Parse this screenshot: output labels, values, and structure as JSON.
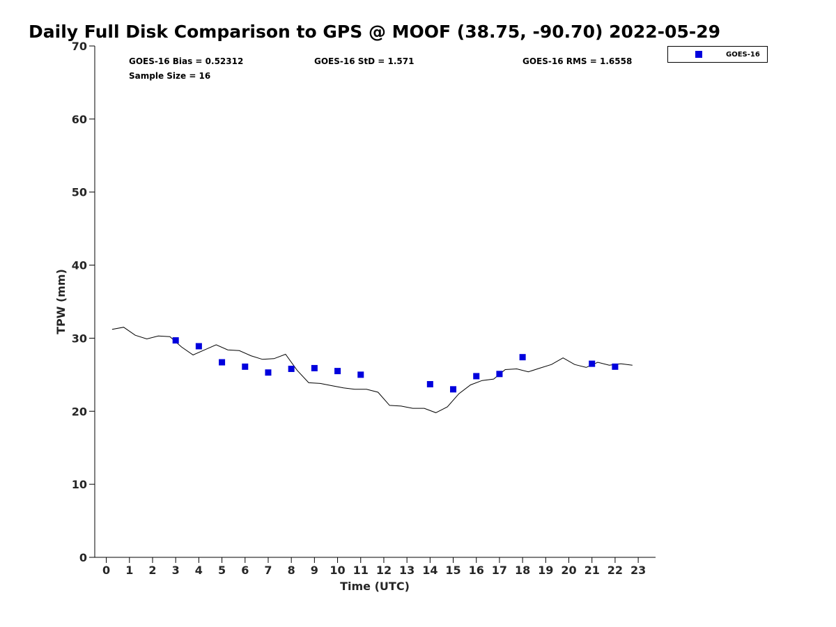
{
  "figure": {
    "title": "Daily Full Disk Comparison to GPS @ MOOF (38.75, -90.70) 2022-05-29"
  },
  "stats": {
    "bias": "GOES-16 Bias = 0.52312",
    "std": "GOES-16 StD = 1.571",
    "rms": "GOES-16 RMS = 1.6558",
    "sample": "Sample Size = 16"
  },
  "legend": {
    "label": "GOES-16"
  },
  "colors": {
    "goes": "#0000dd",
    "gps_line": "#000000",
    "axis": "#000000",
    "tick_text": "#262626"
  },
  "chart_data": {
    "type": "scatter",
    "title": "Daily Full Disk Comparison to GPS @ MOOF (38.75, -90.70) 2022-05-29",
    "xlabel": "Time (UTC)",
    "ylabel": "TPW (mm)",
    "xlim": [
      -0.5,
      23.75
    ],
    "ylim": [
      0,
      70
    ],
    "xticks": [
      0,
      1,
      2,
      3,
      4,
      5,
      6,
      7,
      8,
      9,
      10,
      11,
      12,
      13,
      14,
      15,
      16,
      17,
      18,
      19,
      20,
      21,
      22,
      23
    ],
    "yticks": [
      0,
      10,
      20,
      30,
      40,
      50,
      60,
      70
    ],
    "grid": false,
    "legend_position": "top-right",
    "series": [
      {
        "name": "GOES-16",
        "type": "scatter",
        "marker": "square",
        "x": [
          3,
          4,
          5,
          6,
          7,
          8,
          9,
          10,
          11,
          14,
          15,
          16,
          17,
          18,
          21,
          22
        ],
        "y": [
          29.7,
          28.9,
          26.7,
          26.1,
          25.3,
          25.8,
          25.9,
          25.5,
          25.0,
          23.7,
          23.0,
          24.8,
          25.1,
          27.4,
          26.5,
          26.1
        ]
      },
      {
        "type": "line",
        "x": [
          0.25,
          0.75,
          1.25,
          1.75,
          2.25,
          2.75,
          3.25,
          3.75,
          4.25,
          4.75,
          5.25,
          5.75,
          6.25,
          6.75,
          7.25,
          7.75,
          8.25,
          8.75,
          9.25,
          9.75,
          10.25,
          10.75,
          11.25,
          11.75,
          12.25,
          12.75,
          13.25,
          13.75,
          14.25,
          14.75,
          15.25,
          15.75,
          16.25,
          16.75,
          17.25,
          17.75,
          18.25,
          18.75,
          19.25,
          19.75,
          20.25,
          20.75,
          21.25,
          21.75,
          22.25,
          22.75
        ],
        "y": [
          31.2,
          31.5,
          30.4,
          29.9,
          30.3,
          30.2,
          28.8,
          27.7,
          28.4,
          29.1,
          28.4,
          28.3,
          27.6,
          27.1,
          27.2,
          27.8,
          25.6,
          23.9,
          23.8,
          23.5,
          23.2,
          23.0,
          23.0,
          22.6,
          20.8,
          20.7,
          20.4,
          20.4,
          19.8,
          20.6,
          22.4,
          23.6,
          24.2,
          24.4,
          25.7,
          25.8,
          25.4,
          25.9,
          26.4,
          27.3,
          26.4,
          26.0,
          26.7,
          26.3,
          26.5,
          26.3
        ]
      }
    ]
  }
}
